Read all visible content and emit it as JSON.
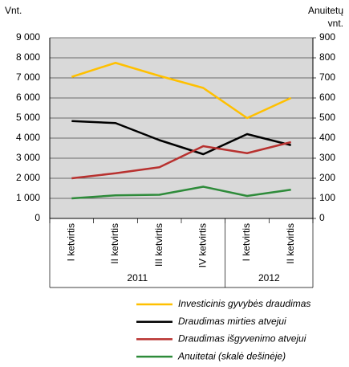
{
  "chart_data": {
    "type": "line",
    "y_label": "Vnt.",
    "y2_label": [
      "Anuitetų",
      "vnt."
    ],
    "categories": [
      "I ketvirtis",
      "II ketvirtis",
      "III ketvirtis",
      "IV ketvirtis",
      "I ketvirtis",
      "II ketvirtis"
    ],
    "groups": [
      {
        "label": "2011",
        "count": 4
      },
      {
        "label": "2012",
        "count": 2
      }
    ],
    "series": [
      {
        "name": "Investicinis gyvybės draudimas",
        "color": "#ffc000",
        "values": [
          7050,
          7750,
          7100,
          6500,
          5000,
          6000
        ]
      },
      {
        "name": "Draudimas mirties atvejui",
        "color": "#000000",
        "values": [
          4850,
          4750,
          3900,
          3200,
          4200,
          3650
        ]
      },
      {
        "name": "Draudimas išgyvenimo atvejui",
        "color": "#b8312f",
        "values": [
          2000,
          2250,
          2550,
          3600,
          3250,
          3800
        ]
      },
      {
        "name": "Anuitetai (skalė dešinėje)",
        "color": "#2e8b3a",
        "values": [
          100,
          115,
          118,
          158,
          112,
          143
        ],
        "axis": "y2"
      }
    ],
    "ylim": [
      0,
      9000
    ],
    "yticks": [
      0,
      {
        "value": 1000,
        "label": "1 000"
      },
      {
        "value": 2000,
        "label": "2 000"
      },
      {
        "value": 3000,
        "label": "3 000"
      },
      {
        "value": 4000,
        "label": "4 000"
      },
      {
        "value": 5000,
        "label": "5 000"
      },
      {
        "value": 6000,
        "label": "6 000"
      },
      {
        "value": 7000,
        "label": "7 000"
      },
      {
        "value": 8000,
        "label": "8 000"
      },
      {
        "value": 9000,
        "label": "9 000"
      }
    ],
    "y2lim": [
      0,
      900
    ],
    "y2ticks": [
      0,
      100,
      200,
      300,
      400,
      500,
      600,
      700,
      800,
      900
    ],
    "grid": true
  }
}
